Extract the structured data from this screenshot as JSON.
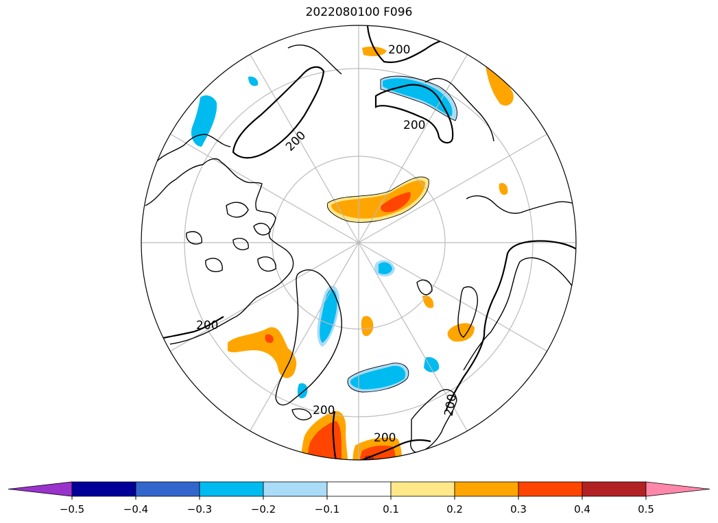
{
  "title": "2022080100 F096",
  "contour_labels": [
    "200",
    "200",
    "200",
    "200",
    "200",
    "200",
    "200"
  ],
  "colorbar": {
    "ticks": [
      "−0.5",
      "−0.4",
      "−0.3",
      "−0.2",
      "−0.1",
      "0.1",
      "0.2",
      "0.3",
      "0.4",
      "0.5"
    ],
    "levels": [
      -0.5,
      -0.4,
      -0.3,
      -0.2,
      -0.1,
      0.1,
      0.2,
      0.3,
      0.4,
      0.5
    ],
    "colors": [
      "#9933cc",
      "#000099",
      "#3366cc",
      "#00bbf0",
      "#aadcf8",
      "#ffffff",
      "#ffe88a",
      "#ffa500",
      "#ff4500",
      "#b22222",
      "#ff88aa"
    ],
    "extend": "both"
  },
  "projection": "north-polar-stereographic",
  "colors": {
    "land_outline": "#000000",
    "graticule": "#bbbbbb",
    "contour": "#000000"
  }
}
